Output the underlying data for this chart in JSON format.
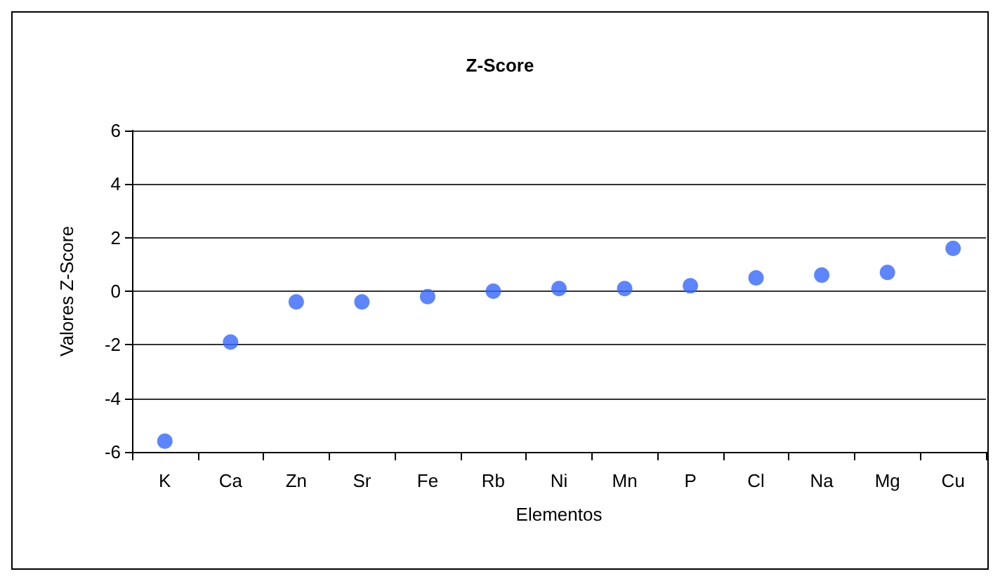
{
  "chart_data": {
    "type": "scatter",
    "title": "Z-Score",
    "xlabel": "Elementos",
    "ylabel": "Valores Z-Score",
    "categories": [
      "K",
      "Ca",
      "Zn",
      "Sr",
      "Fe",
      "Rb",
      "Ni",
      "Mn",
      "P",
      "Cl",
      "Na",
      "Mg",
      "Cu"
    ],
    "series": [
      {
        "color": "#3366ff",
        "values": [
          -5.6,
          -1.9,
          -0.4,
          -0.4,
          -0.2,
          0.0,
          0.1,
          0.1,
          0.2,
          0.5,
          0.6,
          0.7,
          1.6
        ]
      }
    ],
    "ylim": [
      -6,
      6
    ],
    "yticks": [
      -6,
      -4,
      -2,
      0,
      2,
      4,
      6
    ],
    "grid": "y",
    "marker": "circle"
  }
}
